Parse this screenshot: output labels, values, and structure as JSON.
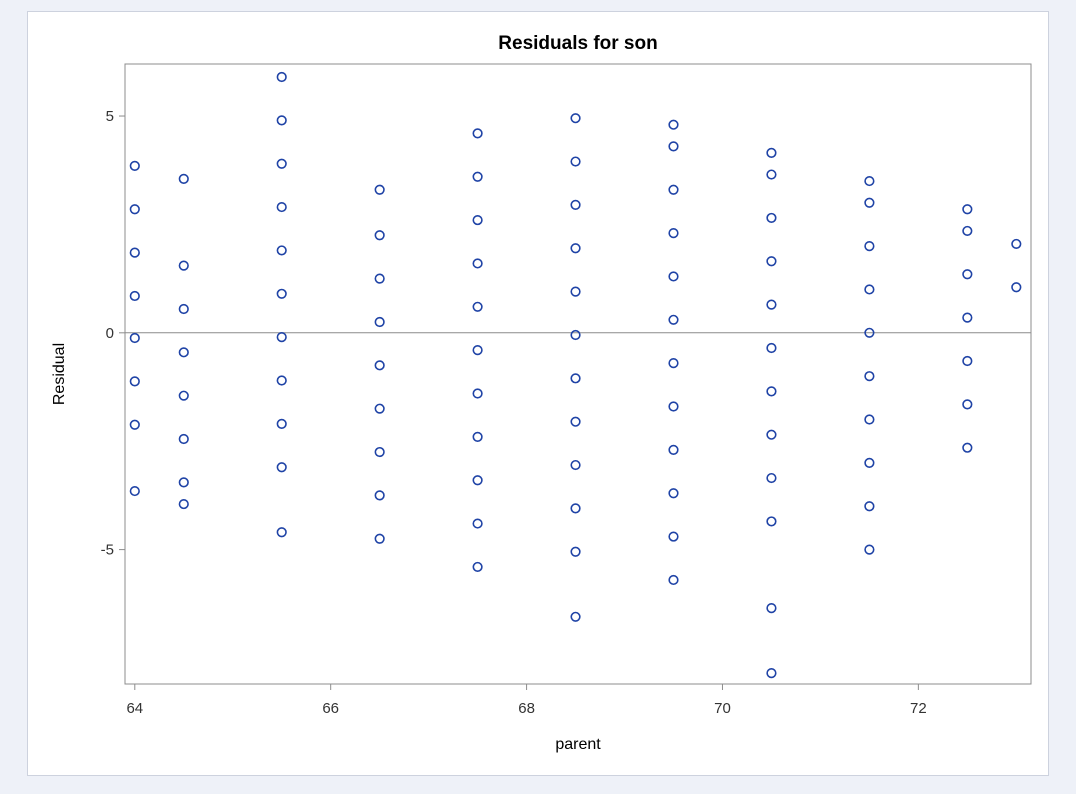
{
  "chart_data": {
    "type": "scatter",
    "title": "Residuals for son",
    "xlabel": "parent",
    "ylabel": "Residual",
    "xlim": [
      63.9,
      73.15
    ],
    "ylim": [
      -8.1,
      6.2
    ],
    "x_ticks": [
      64,
      66,
      68,
      70,
      72
    ],
    "y_ticks": [
      -5,
      0,
      5
    ],
    "reference_line_y": 0,
    "grid": false,
    "legend": "none",
    "marker": "open-circle",
    "colors": {
      "marker": "#1f43a6",
      "frame": "#8c8c8c",
      "reference": "#8c8c8c",
      "background": "#eef1f8"
    },
    "points": [
      [
        64.0,
        3.85
      ],
      [
        64.0,
        2.85
      ],
      [
        64.0,
        1.85
      ],
      [
        64.0,
        0.85
      ],
      [
        64.0,
        -0.12
      ],
      [
        64.0,
        -1.12
      ],
      [
        64.0,
        -2.12
      ],
      [
        64.0,
        -3.65
      ],
      [
        64.5,
        3.55
      ],
      [
        64.5,
        1.55
      ],
      [
        64.5,
        0.55
      ],
      [
        64.5,
        -0.45
      ],
      [
        64.5,
        -1.45
      ],
      [
        64.5,
        -2.45
      ],
      [
        64.5,
        -3.45
      ],
      [
        64.5,
        -3.95
      ],
      [
        65.5,
        5.9
      ],
      [
        65.5,
        4.9
      ],
      [
        65.5,
        3.9
      ],
      [
        65.5,
        2.9
      ],
      [
        65.5,
        1.9
      ],
      [
        65.5,
        0.9
      ],
      [
        65.5,
        -0.1
      ],
      [
        65.5,
        -1.1
      ],
      [
        65.5,
        -2.1
      ],
      [
        65.5,
        -3.1
      ],
      [
        65.5,
        -4.6
      ],
      [
        66.5,
        3.3
      ],
      [
        66.5,
        2.25
      ],
      [
        66.5,
        1.25
      ],
      [
        66.5,
        0.25
      ],
      [
        66.5,
        -0.75
      ],
      [
        66.5,
        -1.75
      ],
      [
        66.5,
        -2.75
      ],
      [
        66.5,
        -3.75
      ],
      [
        66.5,
        -4.75
      ],
      [
        67.5,
        4.6
      ],
      [
        67.5,
        3.6
      ],
      [
        67.5,
        2.6
      ],
      [
        67.5,
        1.6
      ],
      [
        67.5,
        0.6
      ],
      [
        67.5,
        -0.4
      ],
      [
        67.5,
        -1.4
      ],
      [
        67.5,
        -2.4
      ],
      [
        67.5,
        -3.4
      ],
      [
        67.5,
        -4.4
      ],
      [
        67.5,
        -5.4
      ],
      [
        68.5,
        4.95
      ],
      [
        68.5,
        3.95
      ],
      [
        68.5,
        2.95
      ],
      [
        68.5,
        1.95
      ],
      [
        68.5,
        0.95
      ],
      [
        68.5,
        -0.05
      ],
      [
        68.5,
        -1.05
      ],
      [
        68.5,
        -2.05
      ],
      [
        68.5,
        -3.05
      ],
      [
        68.5,
        -4.05
      ],
      [
        68.5,
        -5.05
      ],
      [
        68.5,
        -6.55
      ],
      [
        69.5,
        4.8
      ],
      [
        69.5,
        4.3
      ],
      [
        69.5,
        3.3
      ],
      [
        69.5,
        2.3
      ],
      [
        69.5,
        1.3
      ],
      [
        69.5,
        0.3
      ],
      [
        69.5,
        -0.7
      ],
      [
        69.5,
        -1.7
      ],
      [
        69.5,
        -2.7
      ],
      [
        69.5,
        -3.7
      ],
      [
        69.5,
        -4.7
      ],
      [
        69.5,
        -5.7
      ],
      [
        70.5,
        4.15
      ],
      [
        70.5,
        3.65
      ],
      [
        70.5,
        2.65
      ],
      [
        70.5,
        1.65
      ],
      [
        70.5,
        0.65
      ],
      [
        70.5,
        -0.35
      ],
      [
        70.5,
        -1.35
      ],
      [
        70.5,
        -2.35
      ],
      [
        70.5,
        -3.35
      ],
      [
        70.5,
        -4.35
      ],
      [
        70.5,
        -6.35
      ],
      [
        70.5,
        -7.85
      ],
      [
        71.5,
        3.5
      ],
      [
        71.5,
        3.0
      ],
      [
        71.5,
        2.0
      ],
      [
        71.5,
        1.0
      ],
      [
        71.5,
        0.0
      ],
      [
        71.5,
        -1.0
      ],
      [
        71.5,
        -2.0
      ],
      [
        71.5,
        -3.0
      ],
      [
        71.5,
        -4.0
      ],
      [
        71.5,
        -5.0
      ],
      [
        72.5,
        2.85
      ],
      [
        72.5,
        2.35
      ],
      [
        72.5,
        1.35
      ],
      [
        72.5,
        0.35
      ],
      [
        72.5,
        -0.65
      ],
      [
        72.5,
        -1.65
      ],
      [
        72.5,
        -2.65
      ],
      [
        73.0,
        2.05
      ],
      [
        73.0,
        1.05
      ]
    ]
  }
}
